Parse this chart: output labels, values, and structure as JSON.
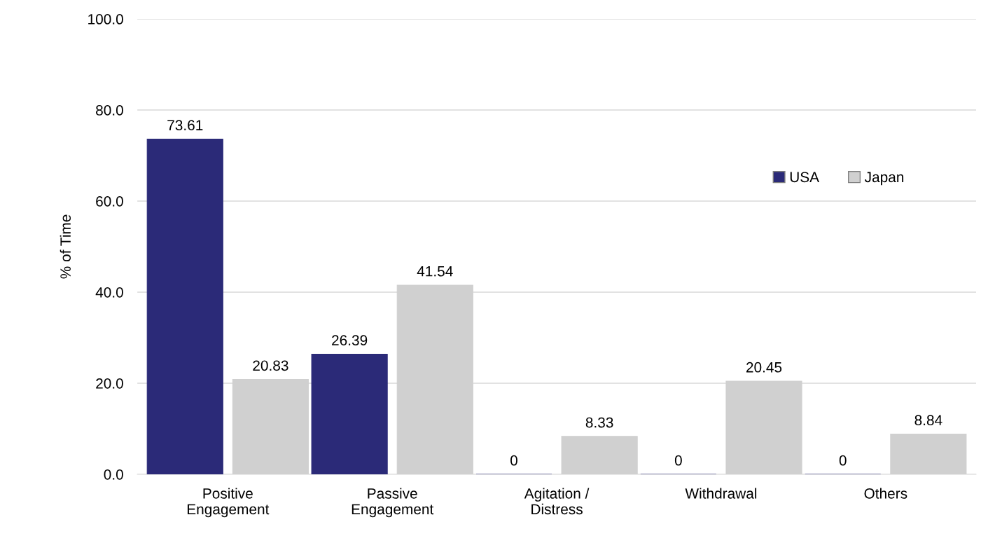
{
  "chart_data": {
    "type": "bar",
    "ylabel": "% of Time",
    "categories": [
      "Positive\nEngagement",
      "Passive\nEngagement",
      "Agitation /\nDistress",
      "Withdrawal",
      "Others"
    ],
    "series": [
      {
        "name": "USA",
        "color": "#2b2a78",
        "values": [
          73.61,
          26.39,
          0,
          0,
          0
        ]
      },
      {
        "name": "Japan",
        "color": "#d0d0d0",
        "values": [
          20.83,
          41.54,
          8.33,
          20.45,
          8.84
        ]
      }
    ],
    "ylim": [
      0,
      100
    ],
    "yticks": [
      {
        "value": 0,
        "label": "0.0"
      },
      {
        "value": 20,
        "label": "20.0"
      },
      {
        "value": 40,
        "label": "40.0"
      },
      {
        "value": 60,
        "label": "60.0"
      },
      {
        "value": 80,
        "label": "80.0"
      },
      {
        "value": 100,
        "label": "100.0"
      }
    ],
    "grid": "y",
    "legend": "right",
    "data_labels": true
  }
}
